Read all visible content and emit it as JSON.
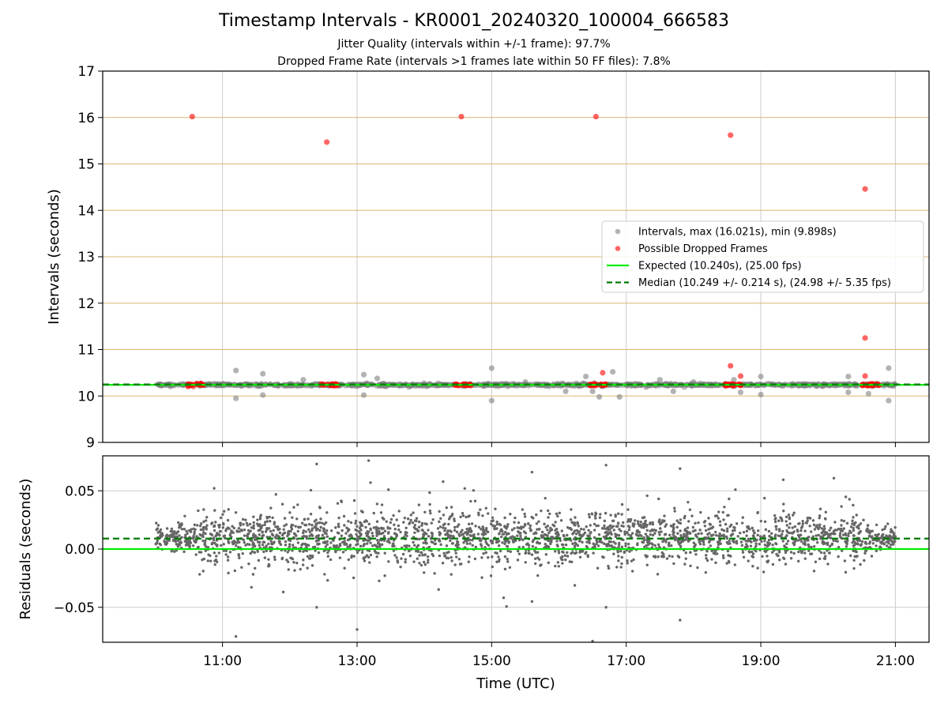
{
  "title": "Timestamp Intervals - KR0001_20240320_100004_666583",
  "subtitle_1": "Jitter Quality (intervals within +/-1 frame): 97.7%",
  "subtitle_2": "Dropped Frame Rate (intervals >1 frames late within 50 FF files): 7.8%",
  "colors": {
    "intervals": "#808080",
    "dropped": "#ff0000",
    "expected": "#00ee00",
    "median": "#007a00",
    "gold_lines": "#d9b870",
    "grid": "#cccccc",
    "residuals": "#666666"
  },
  "chart_data": [
    {
      "type": "scatter",
      "panel": "top",
      "xlabel": "",
      "ylabel": "Intervals (seconds)",
      "xlim_hours": [
        9.22,
        21.5
      ],
      "ylim": [
        9,
        17
      ],
      "yticks": [
        "9",
        "10",
        "11",
        "12",
        "13",
        "14",
        "15",
        "16",
        "17"
      ],
      "xticks": [
        "11:00",
        "13:00",
        "15:00",
        "17:00",
        "19:00",
        "21:00"
      ],
      "grid": "vertical",
      "reference_lines_y": [
        10,
        11,
        12,
        13,
        14,
        15,
        16
      ],
      "legend_position": "right",
      "legend": [
        {
          "label": "Intervals, max (16.021s), min (9.898s)",
          "marker": "dot",
          "color": "#808080"
        },
        {
          "label": "Possible Dropped Frames",
          "marker": "dot",
          "color": "#ff0000"
        },
        {
          "label": "Expected (10.240s), (25.00 fps)",
          "marker": "line",
          "color": "#00ee00"
        },
        {
          "label": "Median (10.249 +/- 0.214 s), (24.98 +/- 5.35 fps)",
          "marker": "dash",
          "color": "#007a00"
        }
      ],
      "series": [
        {
          "name": "Intervals, max (16.021s), min (9.898s)",
          "baseline_y": 10.24,
          "x_range_hours": [
            10.0,
            21.0
          ],
          "points": [
            [
              11.2,
              10.55
            ],
            [
              11.2,
              9.95
            ],
            [
              11.6,
              10.48
            ],
            [
              11.6,
              10.02
            ],
            [
              12.2,
              10.35
            ],
            [
              13.1,
              10.46
            ],
            [
              13.1,
              10.02
            ],
            [
              13.3,
              10.38
            ],
            [
              15.0,
              10.6
            ],
            [
              15.0,
              9.9
            ],
            [
              15.5,
              10.3
            ],
            [
              16.1,
              10.1
            ],
            [
              16.4,
              10.42
            ],
            [
              16.5,
              10.1
            ],
            [
              16.6,
              9.98
            ],
            [
              16.8,
              10.52
            ],
            [
              16.9,
              9.98
            ],
            [
              17.5,
              10.35
            ],
            [
              17.7,
              10.1
            ],
            [
              18.0,
              10.3
            ],
            [
              18.6,
              10.35
            ],
            [
              18.7,
              10.08
            ],
            [
              19.0,
              10.42
            ],
            [
              19.0,
              10.03
            ],
            [
              20.3,
              10.42
            ],
            [
              20.3,
              10.08
            ],
            [
              20.6,
              10.05
            ],
            [
              20.9,
              10.6
            ],
            [
              20.9,
              9.9
            ]
          ]
        },
        {
          "name": "Possible Dropped Frames",
          "points": [
            [
              10.55,
              16.02
            ],
            [
              12.55,
              15.47
            ],
            [
              14.55,
              16.02
            ],
            [
              16.55,
              16.02
            ],
            [
              18.55,
              15.62
            ],
            [
              20.55,
              14.46
            ],
            [
              20.55,
              11.25
            ],
            [
              18.55,
              10.65
            ],
            [
              18.7,
              10.43
            ],
            [
              16.65,
              10.5
            ],
            [
              20.55,
              10.43
            ]
          ],
          "clusters": [
            [
              10.45,
              10.72
            ],
            [
              12.45,
              12.72
            ],
            [
              14.45,
              14.72
            ],
            [
              16.45,
              16.72
            ],
            [
              18.45,
              18.72
            ],
            [
              20.5,
              20.77
            ]
          ],
          "cluster_y": 10.24
        },
        {
          "name": "Expected (10.240s), (25.00 fps)",
          "y": 10.24
        },
        {
          "name": "Median (10.249 +/- 0.214 s), (24.98 +/- 5.35 fps)",
          "y": 10.249
        }
      ]
    },
    {
      "type": "scatter",
      "panel": "bottom",
      "xlabel": "Time (UTC)",
      "ylabel": "Residuals (seconds)",
      "xlim_hours": [
        9.22,
        21.5
      ],
      "ylim": [
        -0.08,
        0.08
      ],
      "ytick_values": [
        -0.05,
        0.0,
        0.05
      ],
      "yticks": [
        "−0.05",
        "0.00",
        "0.05"
      ],
      "xticks": [
        "11:00",
        "13:00",
        "15:00",
        "17:00",
        "19:00",
        "21:00"
      ],
      "grid": "both",
      "expected_residual": 0.0,
      "median_residual": 0.009,
      "residual_spread": 0.02,
      "point_count": 2600,
      "outliers": [
        [
          11.2,
          -0.075
        ],
        [
          12.4,
          0.073
        ],
        [
          13.0,
          -0.069
        ],
        [
          15.6,
          0.066
        ],
        [
          16.7,
          0.072
        ],
        [
          17.8,
          0.069
        ],
        [
          17.8,
          -0.061
        ],
        [
          16.5,
          -0.079
        ],
        [
          13.2,
          0.057
        ],
        [
          14.6,
          0.052
        ],
        [
          12.4,
          -0.05
        ],
        [
          15.6,
          -0.045
        ],
        [
          16.7,
          -0.05
        ]
      ]
    }
  ]
}
